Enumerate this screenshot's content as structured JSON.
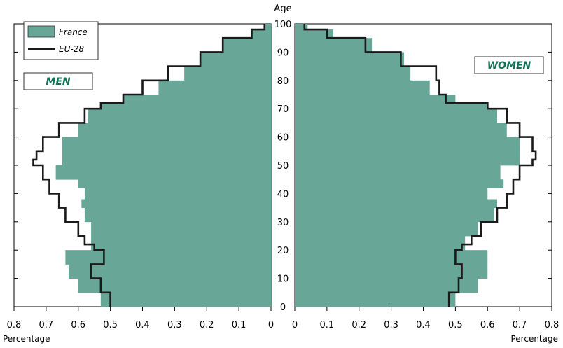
{
  "chart_data": {
    "type": "bar",
    "title": "",
    "center_label": "Age",
    "xlabel": "Percentage",
    "xlim": [
      0,
      0.8
    ],
    "ylim": [
      0,
      100
    ],
    "x_ticks_left": [
      "0.8",
      "0.7",
      "0.6",
      "0.5",
      "0.4",
      "0.3",
      "0.2",
      "0.1",
      "0"
    ],
    "x_ticks_right": [
      "0",
      "0.1",
      "0.2",
      "0.3",
      "0.4",
      "0.5",
      "0.6",
      "0.7",
      "0.8"
    ],
    "age_ticks": [
      "0",
      "10",
      "20",
      "30",
      "40",
      "50",
      "60",
      "70",
      "80",
      "90",
      "100"
    ],
    "panels": {
      "men": {
        "label": "MEN",
        "legend_position": "top-left"
      },
      "women": {
        "label": "WOMEN",
        "legend_position": "top-right"
      }
    },
    "legend": {
      "fill_label": "France",
      "line_label": "EU-28"
    },
    "colors": {
      "france_fill": "#68a797",
      "eu_line": "#1a1a1a",
      "label_text": "#127055"
    },
    "series": [
      {
        "name": "France",
        "panel": "men",
        "style": "bars",
        "age": [
          0,
          5,
          10,
          15,
          20,
          25,
          30,
          35,
          38,
          42,
          45,
          50,
          55,
          60,
          65,
          70,
          72,
          75,
          80,
          85,
          90,
          95,
          98,
          100
        ],
        "values": [
          0.53,
          0.6,
          0.63,
          0.64,
          0.56,
          0.56,
          0.58,
          0.59,
          0.58,
          0.6,
          0.67,
          0.65,
          0.65,
          0.6,
          0.57,
          0.53,
          0.46,
          0.35,
          0.27,
          0.22,
          0.15,
          0.06,
          0.02,
          0.0
        ]
      },
      {
        "name": "EU-28",
        "panel": "men",
        "style": "step-line",
        "age": [
          0,
          5,
          10,
          15,
          20,
          22,
          25,
          30,
          35,
          40,
          45,
          50,
          52,
          55,
          60,
          65,
          70,
          72,
          75,
          80,
          85,
          90,
          95,
          98,
          100
        ],
        "values": [
          0.5,
          0.53,
          0.56,
          0.52,
          0.55,
          0.58,
          0.6,
          0.64,
          0.66,
          0.69,
          0.71,
          0.74,
          0.73,
          0.71,
          0.66,
          0.58,
          0.53,
          0.46,
          0.4,
          0.32,
          0.22,
          0.15,
          0.06,
          0.02,
          0.0
        ]
      },
      {
        "name": "France",
        "panel": "women",
        "style": "bars",
        "age": [
          0,
          5,
          10,
          15,
          20,
          25,
          30,
          35,
          38,
          42,
          45,
          50,
          55,
          60,
          65,
          70,
          72,
          75,
          80,
          85,
          90,
          95,
          98,
          100
        ],
        "values": [
          0.5,
          0.57,
          0.6,
          0.6,
          0.53,
          0.57,
          0.62,
          0.63,
          0.6,
          0.65,
          0.64,
          0.7,
          0.7,
          0.66,
          0.63,
          0.6,
          0.5,
          0.42,
          0.36,
          0.34,
          0.24,
          0.12,
          0.04,
          0.0
        ]
      },
      {
        "name": "EU-28",
        "panel": "women",
        "style": "step-line",
        "age": [
          0,
          5,
          10,
          15,
          20,
          22,
          25,
          30,
          35,
          40,
          45,
          50,
          52,
          55,
          60,
          65,
          70,
          72,
          75,
          80,
          85,
          90,
          95,
          98,
          100
        ],
        "values": [
          0.48,
          0.51,
          0.52,
          0.5,
          0.52,
          0.55,
          0.58,
          0.63,
          0.66,
          0.68,
          0.7,
          0.74,
          0.75,
          0.74,
          0.7,
          0.66,
          0.6,
          0.47,
          0.45,
          0.44,
          0.33,
          0.22,
          0.1,
          0.03,
          0.0
        ]
      }
    ]
  }
}
